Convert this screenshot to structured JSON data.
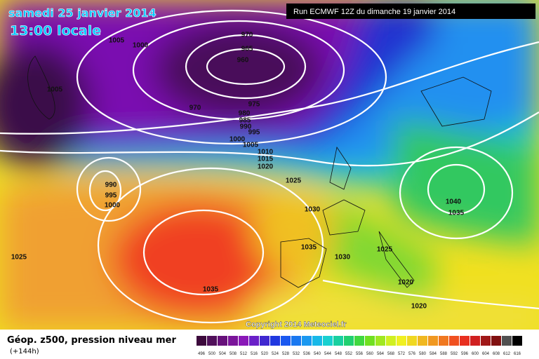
{
  "header": {
    "date": "samedi 25 janvier 2014",
    "time": "13:00 locale",
    "run": "Run ECMWF 12Z du dimanche 19 janvier 2014"
  },
  "isobar_labels": [
    1005,
    1000,
    970,
    965,
    960,
    1005,
    970,
    975,
    980,
    985,
    990,
    995,
    1000,
    1005,
    1010,
    1015,
    1020,
    1025,
    990,
    995,
    1000,
    1030,
    1040,
    1035,
    1035,
    1025,
    1030,
    1025,
    1035,
    1020,
    1020
  ],
  "copyright": "Copyright 2014 Meteociel.fr",
  "legend": {
    "title": "Géop. z500, pression niveau mer",
    "lead": "(+144h)",
    "scale": [
      496,
      500,
      504,
      508,
      512,
      516,
      520,
      524,
      528,
      532,
      536,
      540,
      544,
      548,
      552,
      556,
      560,
      564,
      568,
      572,
      576,
      580,
      584,
      588,
      592,
      596,
      600,
      604,
      608,
      612,
      616
    ]
  }
}
